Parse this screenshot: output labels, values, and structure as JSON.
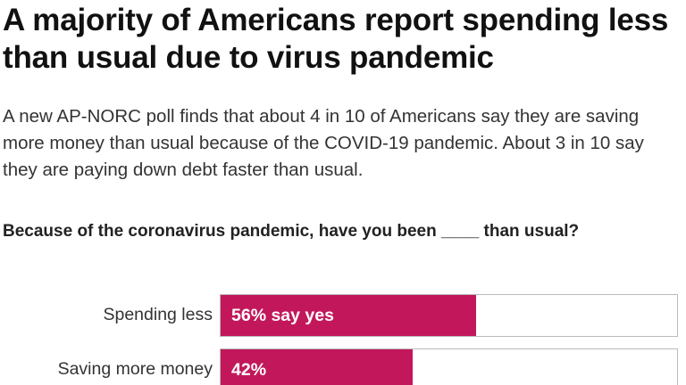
{
  "headline": "A majority of Americans report spending less than usual due to virus pandemic",
  "subhead": "A new AP-NORC poll finds that about 4 in 10 of Americans say they are saving more money than usual because of the COVID-19 pandemic. About 3 in 10 say they are paying down debt faster than usual.",
  "question": "Because of the coronavirus pandemic, have you been ____ than usual?",
  "colors": {
    "bar": "#c2185b",
    "track_border": "#bbbbbb"
  },
  "chart_data": {
    "type": "bar",
    "orientation": "horizontal",
    "categories": [
      "Spending less",
      "Saving more money"
    ],
    "values": [
      56,
      42
    ],
    "value_labels": [
      "56% say yes",
      "42%"
    ],
    "xlim": [
      0,
      100
    ],
    "grid": false,
    "title": "",
    "xlabel": "",
    "ylabel": ""
  }
}
